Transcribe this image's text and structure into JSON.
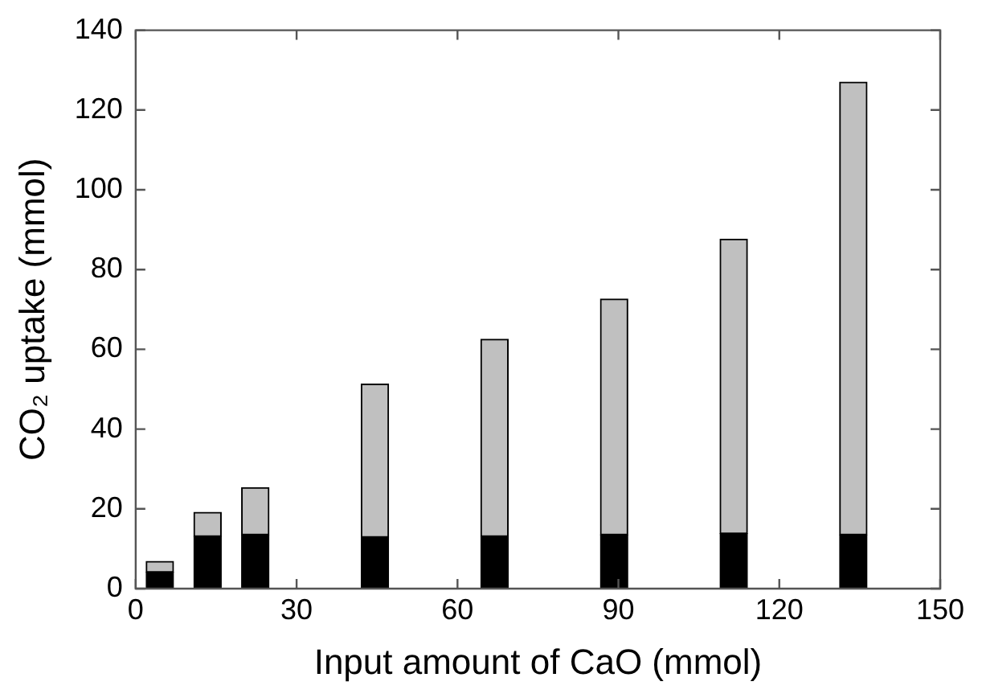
{
  "chart_data": {
    "type": "bar",
    "stacked": true,
    "xlabel": "Input amount of CaO (mmol)",
    "ylabel": "CO₂ uptake (mmol)",
    "x": [
      4.5,
      13.4,
      22.3,
      44.6,
      66.9,
      89.2,
      111.5,
      133.8
    ],
    "series": [
      {
        "color": "#000000",
        "values": [
          4.1,
          13.1,
          13.5,
          12.9,
          13.1,
          13.5,
          13.8,
          13.5
        ]
      },
      {
        "color": "#c0c0c0",
        "values": [
          2.7,
          6.0,
          11.8,
          38.4,
          49.4,
          59.1,
          73.8,
          113.5
        ]
      }
    ],
    "xlim": [
      0,
      150
    ],
    "xticks": [
      0,
      30,
      60,
      90,
      120,
      150
    ],
    "ylim": [
      0,
      140
    ],
    "yticks": [
      0,
      20,
      40,
      60,
      80,
      100,
      120,
      140
    ],
    "legend": false
  }
}
